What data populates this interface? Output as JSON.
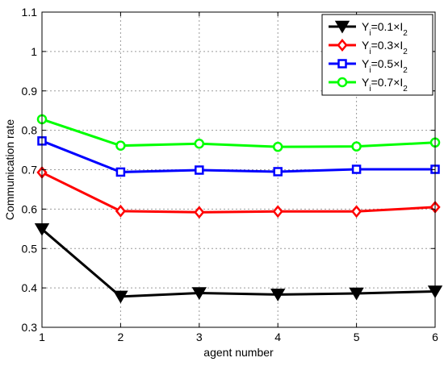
{
  "chart_data": {
    "type": "line",
    "title": "",
    "xlabel": "agent number",
    "ylabel": "Communication rate",
    "x": [
      1,
      2,
      3,
      4,
      5,
      6
    ],
    "xlim": [
      1,
      6
    ],
    "ylim": [
      0.3,
      1.1
    ],
    "xticks": [
      "1",
      "2",
      "3",
      "4",
      "5",
      "6"
    ],
    "yticks": [
      "0.3",
      "0.4",
      "0.5",
      "0.6",
      "0.7",
      "0.8",
      "0.9",
      "1",
      "1.1"
    ],
    "grid": true,
    "legend_position": "top-right",
    "series": [
      {
        "name": "Y_i=0.1×I_2",
        "color": "#000000",
        "marker": "triangle-down",
        "values": [
          0.549,
          0.378,
          0.387,
          0.383,
          0.386,
          0.391
        ]
      },
      {
        "name": "Y_i=0.3×I_2",
        "color": "#ff0000",
        "marker": "diamond",
        "values": [
          0.693,
          0.595,
          0.592,
          0.594,
          0.594,
          0.605
        ]
      },
      {
        "name": "Y_i=0.5×I_2",
        "color": "#0000ff",
        "marker": "square",
        "values": [
          0.773,
          0.694,
          0.699,
          0.695,
          0.701,
          0.701
        ]
      },
      {
        "name": "Y_i=0.7×I_2",
        "color": "#00ff00",
        "marker": "circle",
        "values": [
          0.828,
          0.761,
          0.766,
          0.758,
          0.759,
          0.769
        ]
      }
    ]
  }
}
